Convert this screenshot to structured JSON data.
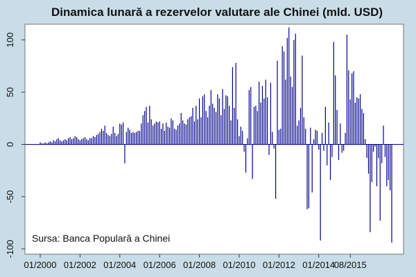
{
  "chart_data": {
    "type": "bar",
    "title": "Dinamica lunară a rezervelor valutare ale Chinei (mld. USD)",
    "source_note": "Sursa: Banca Populară a Chinei",
    "x_ticks": [
      "01/2000",
      "01/2002",
      "01/2004",
      "01/2006",
      "01/2008",
      "01/2010",
      "01/2012",
      "01/2014",
      "08/2015"
    ],
    "y_ticks": [
      -100,
      -50,
      0,
      50,
      100
    ],
    "ylim": [
      -105,
      115
    ],
    "grid": false,
    "colors": {
      "background": "#c8dde8",
      "plot_background": "#ffffff",
      "bar": "#00008b",
      "text": "#111111"
    },
    "x_start": "01/2000",
    "x_end": "08/2015",
    "series": [
      {
        "values": [
          2,
          1,
          1,
          2,
          1,
          2,
          3,
          2,
          4,
          3,
          5,
          6,
          4,
          3,
          4,
          5,
          4,
          6,
          7,
          5,
          6,
          8,
          7,
          5,
          4,
          5,
          6,
          7,
          5,
          4,
          6,
          6,
          8,
          7,
          9,
          10,
          12,
          15,
          13,
          18,
          11,
          9,
          8,
          10,
          17,
          11,
          8,
          10,
          20,
          19,
          21,
          -18,
          12,
          16,
          14,
          11,
          12,
          11,
          12,
          13,
          13,
          20,
          28,
          32,
          36,
          21,
          37,
          24,
          18,
          20,
          22,
          21,
          22,
          15,
          20,
          13,
          21,
          17,
          16,
          25,
          23,
          15,
          14,
          18,
          20,
          30,
          23,
          20,
          19,
          24,
          26,
          27,
          35,
          22,
          37,
          24,
          44,
          26,
          46,
          48,
          32,
          26,
          37,
          52,
          39,
          35,
          31,
          48,
          44,
          28,
          53,
          34,
          47,
          46,
          37,
          23,
          74,
          35,
          78,
          24,
          8,
          17,
          13,
          -7,
          -27,
          6,
          52,
          55,
          -33,
          36,
          37,
          32,
          60,
          40,
          56,
          44,
          62,
          45,
          -10,
          59,
          12,
          -4,
          -52,
          80,
          14,
          15,
          94,
          89,
          62,
          102,
          112,
          65,
          55,
          100,
          106,
          18,
          23,
          35,
          85,
          26,
          15,
          -62,
          -61,
          16,
          -46,
          5,
          14,
          13,
          -5,
          -92,
          11,
          -6,
          36,
          -20,
          21,
          -34,
          -12,
          98,
          66,
          33,
          -15,
          20,
          -8,
          -6,
          11,
          105,
          71,
          43,
          68,
          70,
          40,
          45,
          44,
          48,
          34,
          30,
          5,
          -13,
          -28,
          -84,
          -36,
          -7,
          -2,
          -40,
          -13,
          -73,
          -18,
          18,
          -12,
          -40,
          -34,
          -44,
          -94
        ]
      }
    ]
  }
}
